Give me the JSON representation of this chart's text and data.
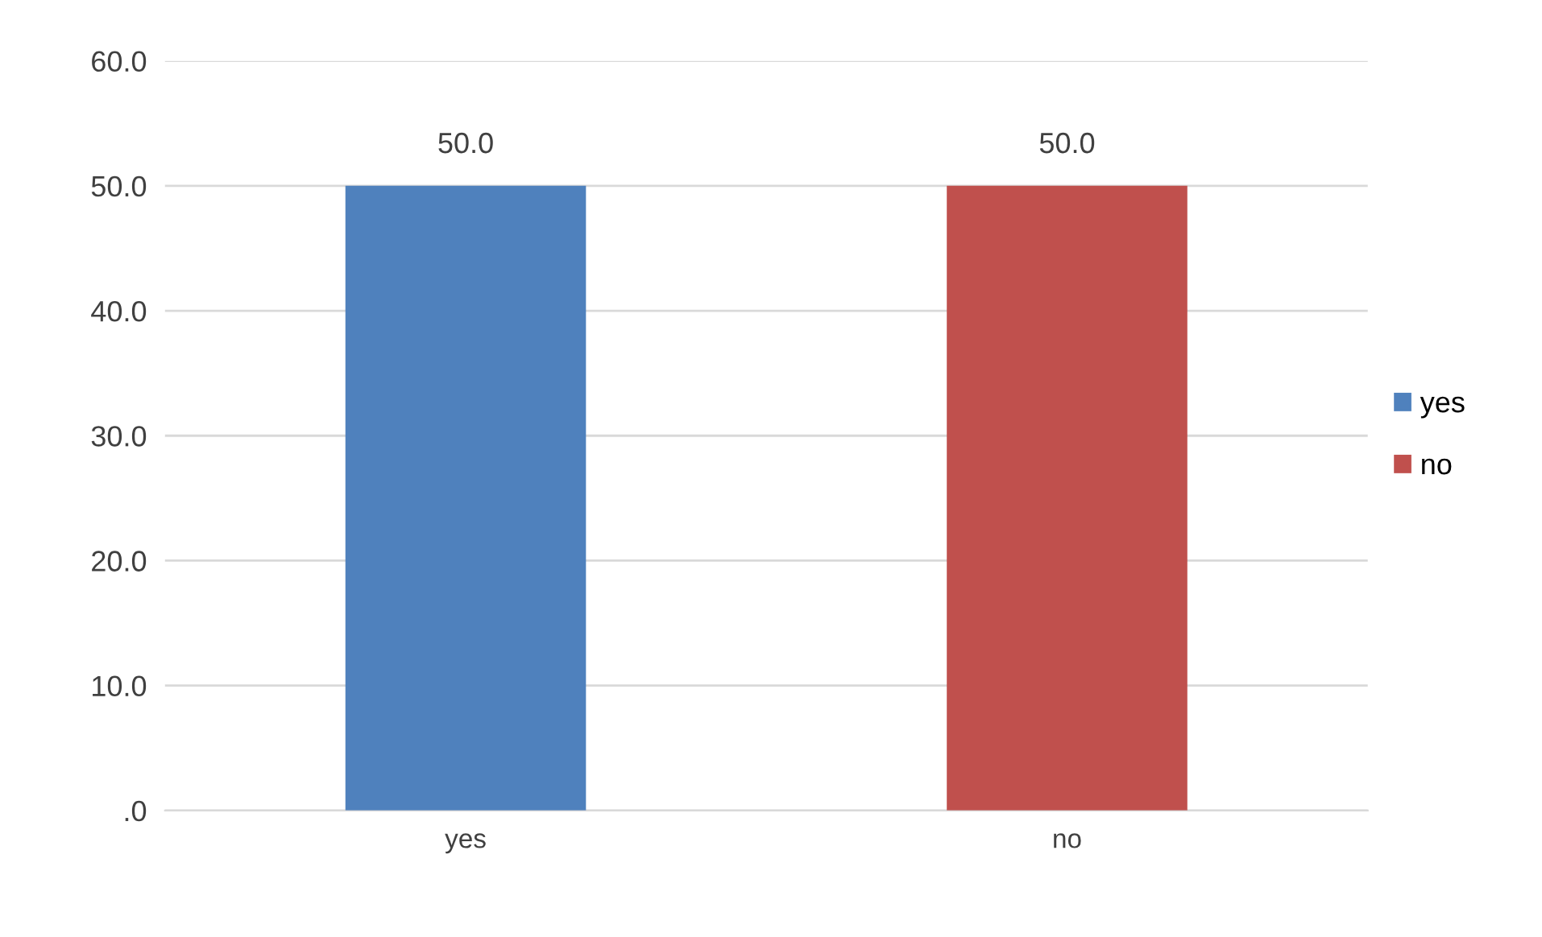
{
  "chart_data": {
    "type": "bar",
    "categories": [
      "yes",
      "no"
    ],
    "series": [
      {
        "name": "yes",
        "color": "#4f81bd",
        "values": [
          50.0,
          null
        ],
        "value_labels": [
          "50.0",
          null
        ]
      },
      {
        "name": "no",
        "color": "#c0504d",
        "values": [
          null,
          50.0
        ],
        "value_labels": [
          null,
          "50.0"
        ]
      }
    ],
    "ylim": [
      0,
      60
    ],
    "yticks": [
      {
        "value": 0,
        "label": ".0"
      },
      {
        "value": 10,
        "label": "10.0"
      },
      {
        "value": 20,
        "label": "20.0"
      },
      {
        "value": 30,
        "label": "30.0"
      },
      {
        "value": 40,
        "label": "40.0"
      },
      {
        "value": 50,
        "label": "50.0"
      },
      {
        "value": 60,
        "label": "60.0"
      }
    ],
    "grid": "y",
    "legend": "right"
  }
}
